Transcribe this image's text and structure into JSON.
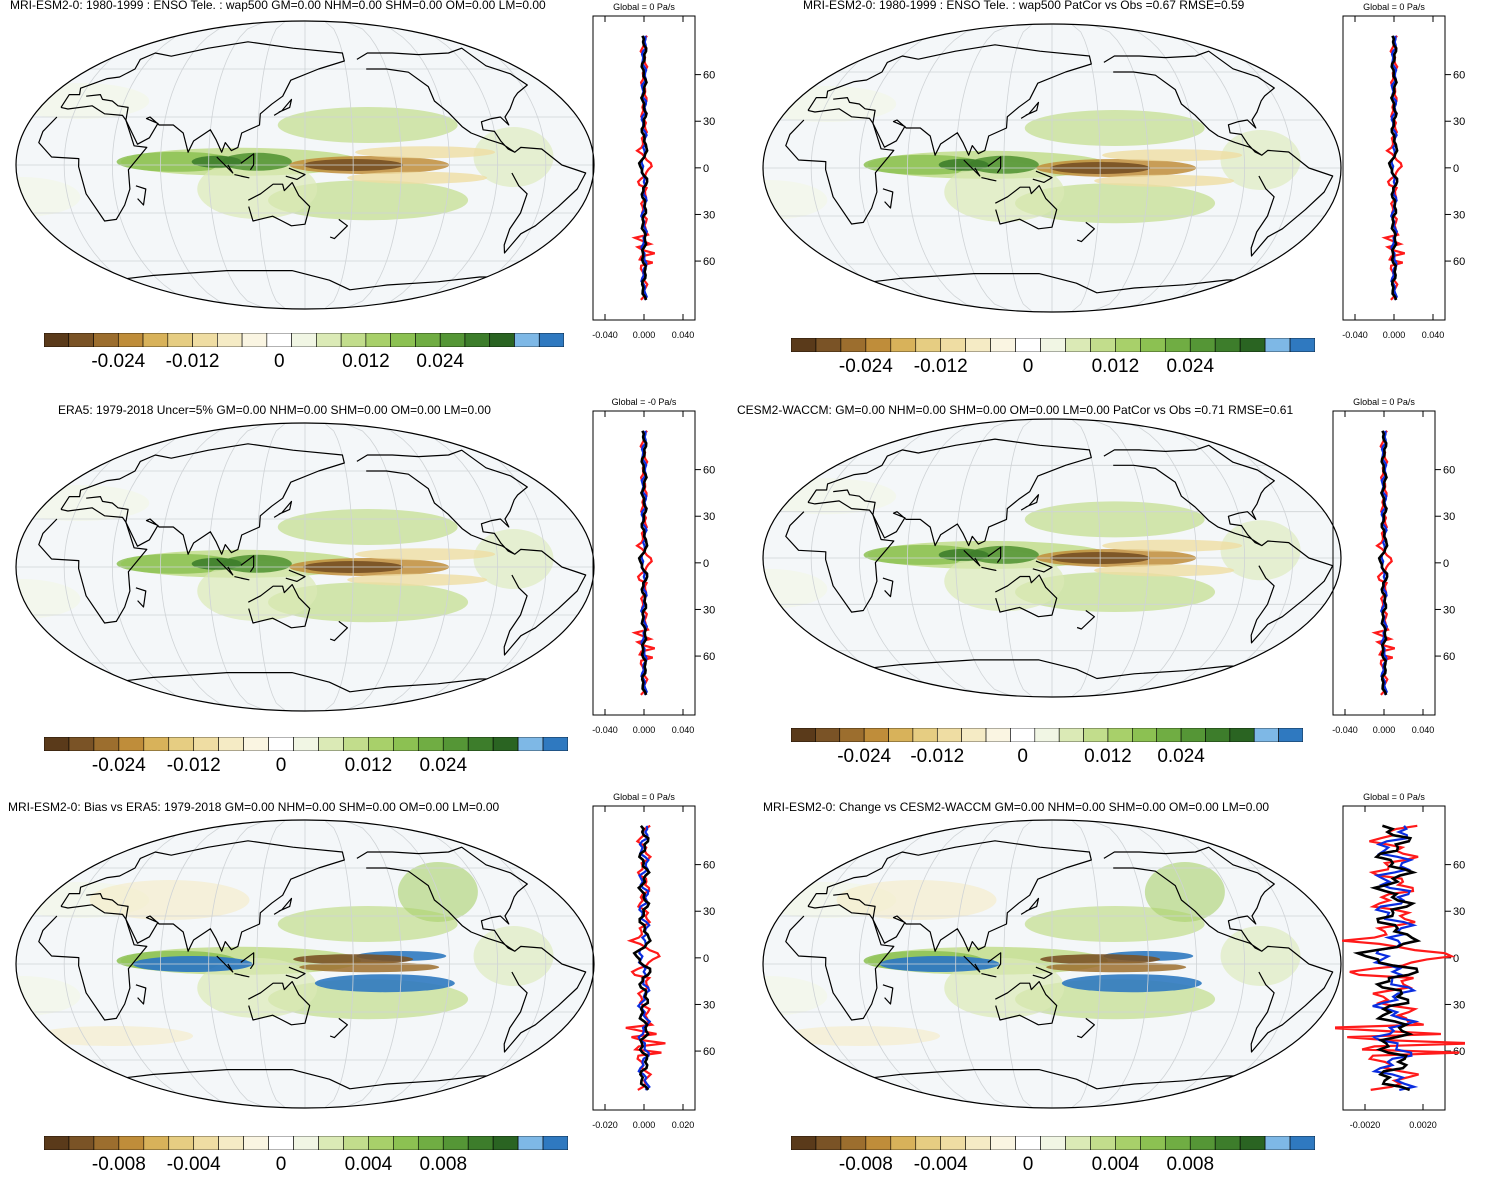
{
  "colors": {
    "scale": [
      "#5a3a1a",
      "#7a5326",
      "#9c6e2e",
      "#bf8d3a",
      "#d8b25a",
      "#e6cd82",
      "#efdda3",
      "#f5ebc5",
      "#faf5e2",
      "#ffffff",
      "#f1f6e4",
      "#dbeab6",
      "#c2dd8c",
      "#a8d06a",
      "#8cc152",
      "#70ad43",
      "#559636",
      "#3d7d2b",
      "#2a6422",
      "#7eb8e6",
      "#2f79c0"
    ],
    "land": "#000000",
    "obs_line": "#ff1a1a",
    "model_line": "#0a2de0",
    "mean_line": "#000000"
  },
  "panels": [
    {
      "id": "p1",
      "title": "MRI-ESM2-0: 1980-1999 : ENSO Tele. : wap500 GM=0.00 NHM=0.00 SHM=0.00 OM=0.00 LM=0.00",
      "zonal_title": "Global = 0 Pa/s",
      "lat_ticks": [
        "60N",
        "30N",
        "0",
        "30S",
        "60S"
      ],
      "x_ticks": [
        "-0.040",
        "0.000",
        "0.040"
      ],
      "cbar_labels": [
        "-0.024",
        "-0.012",
        "0",
        "0.012",
        "0.024"
      ]
    },
    {
      "id": "p2",
      "title": "MRI-ESM2-0: 1980-1999 : ENSO Tele. : wap500 PatCor vs Obs =0.67 RMSE=0.59",
      "zonal_title": "Global = 0 Pa/s",
      "lat_ticks": [
        "60N",
        "30N",
        "0",
        "30S",
        "60S"
      ],
      "x_ticks": [
        "-0.040",
        "0.000",
        "0.040"
      ],
      "cbar_labels": [
        "-0.024",
        "-0.012",
        "0",
        "0.012",
        "0.024"
      ]
    },
    {
      "id": "p3",
      "title": "ERA5: 1979-2018 Uncer=5% GM=0.00 NHM=0.00 SHM=0.00 OM=0.00 LM=0.00",
      "zonal_title": "Global = -0 Pa/s",
      "lat_ticks": [
        "60N",
        "30N",
        "0",
        "30S",
        "60S"
      ],
      "x_ticks": [
        "-0.040",
        "0.000",
        "0.040"
      ],
      "cbar_labels": [
        "-0.024",
        "-0.012",
        "0",
        "0.012",
        "0.024"
      ]
    },
    {
      "id": "p4",
      "title": "CESM2-WACCM: GM=0.00 NHM=0.00 SHM=0.00 OM=0.00 LM=0.00 PatCor vs Obs =0.71 RMSE=0.61",
      "zonal_title": "Global = 0 Pa/s",
      "lat_ticks": [
        "60N",
        "30N",
        "0",
        "30S",
        "60S"
      ],
      "x_ticks": [
        "-0.040",
        "0.000",
        "0.040"
      ],
      "cbar_labels": [
        "-0.024",
        "-0.012",
        "0",
        "0.012",
        "0.024"
      ]
    },
    {
      "id": "p5",
      "title": "MRI-ESM2-0: Bias vs ERA5: 1979-2018 GM=0.00 NHM=0.00 SHM=0.00 OM=0.00 LM=0.00",
      "zonal_title": "Global = 0 Pa/s",
      "lat_ticks": [
        "60N",
        "30N",
        "0",
        "30S",
        "60S"
      ],
      "x_ticks": [
        "-0.020",
        "0.000",
        "0.020"
      ],
      "cbar_labels": [
        "-0.008",
        "-0.004",
        "0",
        "0.004",
        "0.008"
      ]
    },
    {
      "id": "p6",
      "title": "MRI-ESM2-0: Change vs CESM2-WACCM GM=0.00 NHM=0.00 SHM=0.00 OM=0.00 LM=0.00",
      "zonal_title": "Global = 0 Pa/s",
      "lat_ticks": [
        "60N",
        "30N",
        "0",
        "30S",
        "60S"
      ],
      "x_ticks": [
        "-0.0020",
        "0.0020"
      ],
      "cbar_labels": [
        "-0.008",
        "-0.004",
        "0",
        "0.004",
        "0.008"
      ]
    }
  ]
}
